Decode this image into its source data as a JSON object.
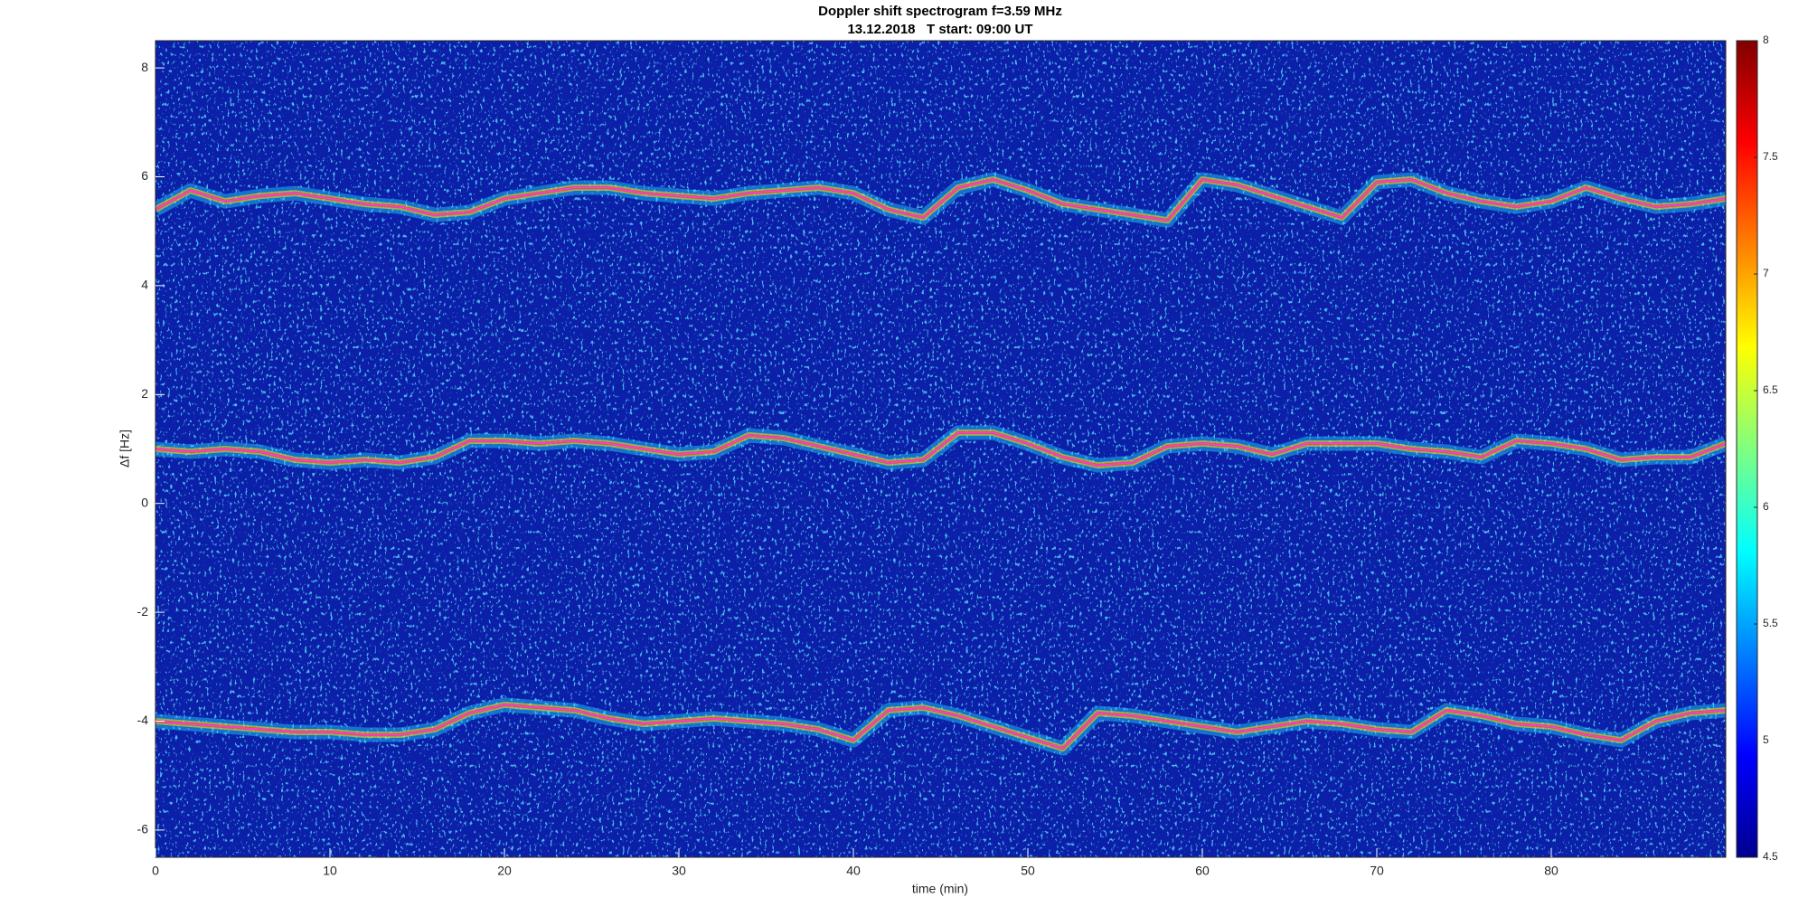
{
  "chart_data": {
    "type": "spectrogram",
    "title": "Doppler shift spectrogram f=3.59 MHz",
    "subtitle": "13.12.2018   T start: 09:00 UT",
    "xlabel": "time (min)",
    "ylabel": "Δf [Hz]",
    "xlim": [
      0,
      90
    ],
    "ylim": [
      -6.5,
      8.5
    ],
    "xticks": [
      0,
      10,
      20,
      30,
      40,
      50,
      60,
      70,
      80
    ],
    "yticks": [
      -6,
      -4,
      -2,
      0,
      2,
      4,
      6,
      8
    ],
    "colormap": "jet",
    "background": "#0b1fa8",
    "clim": [
      4.5,
      8
    ],
    "cticks": [
      4.5,
      5,
      5.5,
      6,
      6.5,
      7,
      7.5,
      8
    ],
    "grid": false,
    "x": [
      0,
      2,
      4,
      6,
      8,
      10,
      12,
      14,
      16,
      18,
      20,
      22,
      24,
      26,
      28,
      30,
      32,
      34,
      36,
      38,
      40,
      42,
      44,
      46,
      48,
      50,
      52,
      54,
      56,
      58,
      60,
      62,
      64,
      66,
      68,
      70,
      72,
      74,
      76,
      78,
      80,
      82,
      84,
      86,
      88,
      90
    ],
    "series": [
      {
        "color": "#ff33ff",
        "values": [
          5.4,
          5.75,
          5.55,
          5.65,
          5.7,
          5.6,
          5.5,
          5.45,
          5.3,
          5.35,
          5.6,
          5.7,
          5.8,
          5.8,
          5.7,
          5.65,
          5.6,
          5.7,
          5.75,
          5.8,
          5.7,
          5.4,
          5.25,
          5.8,
          5.95,
          5.75,
          5.5,
          5.4,
          5.3,
          5.2,
          5.95,
          5.85,
          5.65,
          5.45,
          5.25,
          5.9,
          5.95,
          5.7,
          5.55,
          5.45,
          5.55,
          5.8,
          5.6,
          5.45,
          5.5,
          5.6
        ]
      },
      {
        "color": "#ff33ff",
        "values": [
          1.0,
          0.95,
          1.0,
          0.95,
          0.8,
          0.75,
          0.8,
          0.75,
          0.85,
          1.15,
          1.15,
          1.1,
          1.15,
          1.1,
          1.0,
          0.9,
          0.95,
          1.25,
          1.2,
          1.05,
          0.9,
          0.75,
          0.8,
          1.3,
          1.3,
          1.1,
          0.85,
          0.7,
          0.75,
          1.05,
          1.1,
          1.05,
          0.9,
          1.1,
          1.1,
          1.1,
          1.0,
          0.95,
          0.85,
          1.15,
          1.1,
          1.0,
          0.8,
          0.85,
          0.85,
          1.1
        ]
      },
      {
        "color": "#ff33ff",
        "values": [
          -4.0,
          -4.05,
          -4.1,
          -4.15,
          -4.2,
          -4.2,
          -4.25,
          -4.25,
          -4.15,
          -3.85,
          -3.7,
          -3.75,
          -3.8,
          -3.95,
          -4.05,
          -4.0,
          -3.95,
          -4.0,
          -4.05,
          -4.15,
          -4.35,
          -3.8,
          -3.75,
          -3.9,
          -4.1,
          -4.3,
          -4.5,
          -3.85,
          -3.9,
          -4.0,
          -4.1,
          -4.2,
          -4.1,
          -4.0,
          -4.05,
          -4.15,
          -4.2,
          -3.8,
          -3.9,
          -4.05,
          -4.1,
          -4.25,
          -4.35,
          -4.0,
          -3.85,
          -3.8
        ]
      }
    ]
  }
}
